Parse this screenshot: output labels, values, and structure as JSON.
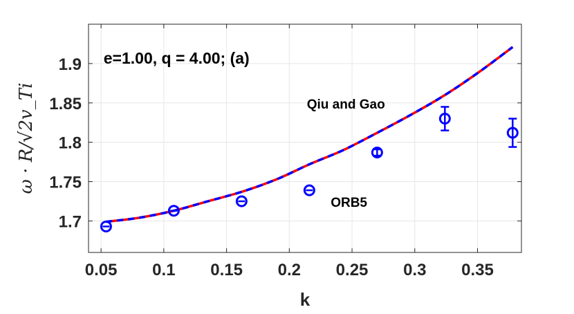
{
  "chart_data": {
    "type": "line",
    "title": "",
    "xlabel": "k",
    "ylabel": "ω · R/√2v_Ti",
    "xlim": [
      0.04,
      0.385
    ],
    "ylim": [
      1.66,
      1.95
    ],
    "xticks": [
      0.05,
      0.1,
      0.15,
      0.2,
      0.25,
      0.3,
      0.35
    ],
    "xtick_labels": [
      "0.05",
      "0.1",
      "0.15",
      "0.2",
      "0.25",
      "0.3",
      "0.35"
    ],
    "yticks": [
      1.7,
      1.75,
      1.8,
      1.85,
      1.9
    ],
    "ytick_labels": [
      "1.7",
      "1.75",
      "1.8",
      "1.85",
      "1.9"
    ],
    "grid": true,
    "series": [
      {
        "name": "Qiu and Gao",
        "kind": "line",
        "style": "red-blue dashed",
        "colors": [
          "#ff0000",
          "#0000ff"
        ],
        "x": [
          0.054,
          0.08,
          0.108,
          0.135,
          0.162,
          0.19,
          0.216,
          0.243,
          0.27,
          0.297,
          0.324,
          0.351,
          0.378
        ],
        "y": [
          1.699,
          1.704,
          1.713,
          1.725,
          1.737,
          1.753,
          1.772,
          1.79,
          1.812,
          1.835,
          1.86,
          1.889,
          1.921
        ]
      },
      {
        "name": "ORB5",
        "kind": "errorbar",
        "color": "#0000ff",
        "x": [
          0.054,
          0.108,
          0.162,
          0.216,
          0.27,
          0.324,
          0.378
        ],
        "y": [
          1.693,
          1.713,
          1.725,
          1.739,
          1.787,
          1.83,
          1.812
        ],
        "err": [
          0.002,
          0.002,
          0.002,
          0.002,
          0.004,
          0.015,
          0.018
        ]
      }
    ],
    "annotations": [
      {
        "text": "e=1.00, q = 4.00; (a)",
        "x": 0.052,
        "y": 1.9,
        "class": "panel-label"
      },
      {
        "text": "Qiu and Gao",
        "x": 0.214,
        "y": 1.843,
        "class": "annot"
      },
      {
        "text": "ORB5",
        "x": 0.233,
        "y": 1.718,
        "class": "annot"
      }
    ]
  }
}
